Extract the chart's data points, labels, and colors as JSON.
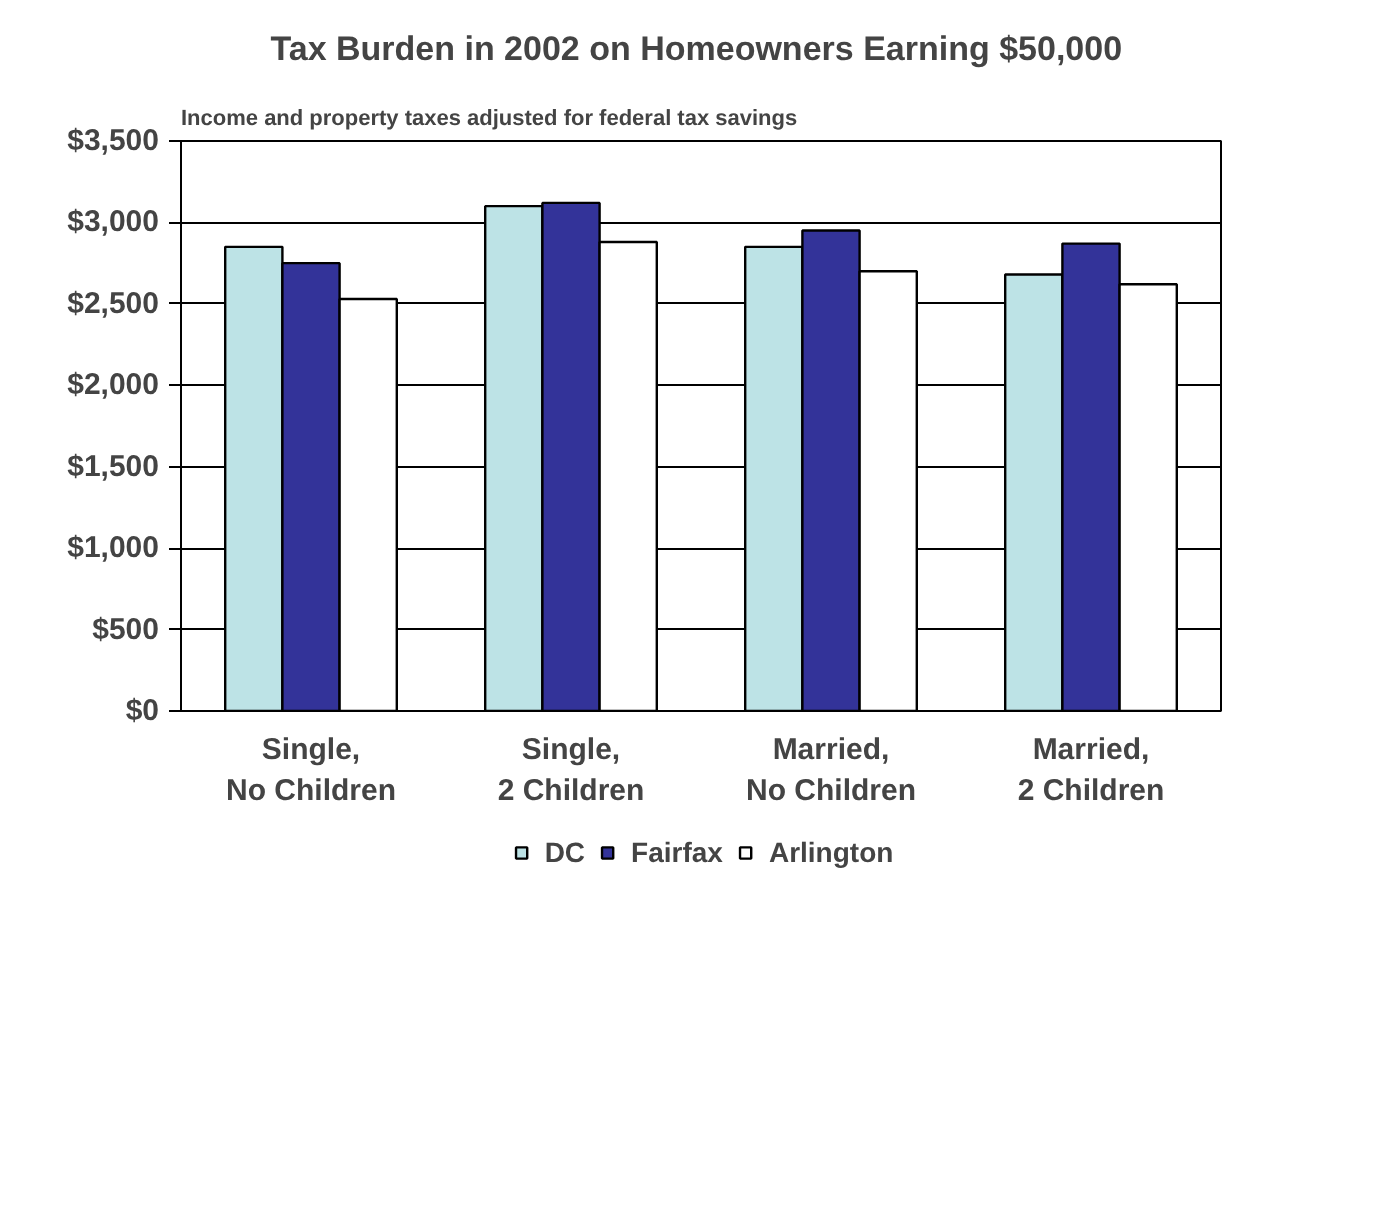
{
  "chart_data": {
    "type": "bar",
    "title": "Tax Burden  in 2002 on Homeowners Earning $50,000",
    "subtitle": "Income and property taxes adjusted for federal tax savings",
    "categories": [
      "Single, No Children",
      "Single, 2 Children",
      "Married, No Children",
      "Married, 2 Children"
    ],
    "series": [
      {
        "name": "DC",
        "color": "#bde3e6",
        "values": [
          2850,
          3100,
          2850,
          2680
        ]
      },
      {
        "name": "Fairfax",
        "color": "#333399",
        "values": [
          2750,
          3120,
          2950,
          2870
        ]
      },
      {
        "name": "Arlington",
        "color": "#ffffff",
        "values": [
          2530,
          2880,
          2700,
          2620
        ]
      }
    ],
    "ylim": [
      0,
      3500
    ],
    "yticks": [
      {
        "value": 0,
        "label": "$0"
      },
      {
        "value": 500,
        "label": "$500"
      },
      {
        "value": 1000,
        "label": "$1,000"
      },
      {
        "value": 1500,
        "label": "$1,500"
      },
      {
        "value": 2000,
        "label": "$2,000"
      },
      {
        "value": 2500,
        "label": "$2,500"
      },
      {
        "value": 3000,
        "label": "$3,000"
      },
      {
        "value": 3500,
        "label": "$3,500"
      }
    ],
    "grid": "y",
    "legend": "bottom"
  }
}
